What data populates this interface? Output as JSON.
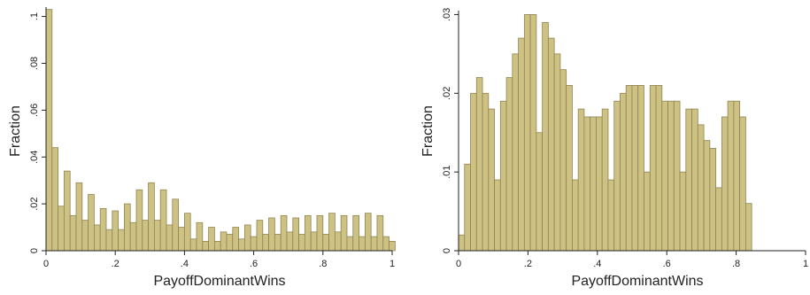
{
  "colors": {
    "bar_fill": "#cdc183",
    "bar_edge": "#8f8553",
    "axis": "#222222",
    "plot_bg": "#ffffff"
  },
  "chart_data": [
    {
      "type": "bar",
      "title": "",
      "xlabel": "PayoffDominantWins",
      "ylabel": "Fraction",
      "xlim": [
        0,
        1
      ],
      "ylim": [
        0,
        0.104
      ],
      "grid": false,
      "legend": "none",
      "x_ticks": [
        0,
        0.2,
        0.4,
        0.6,
        0.8,
        1
      ],
      "x_tick_labels": [
        "0",
        ".2",
        ".4",
        ".6",
        ".8",
        "1"
      ],
      "y_ticks": [
        0,
        0.02,
        0.04,
        0.06,
        0.08,
        0.1
      ],
      "y_tick_labels": [
        "0",
        ".02",
        ".04",
        ".06",
        ".08",
        ".1"
      ],
      "bin_width": 0.01739,
      "values": [
        0.103,
        0.044,
        0.019,
        0.034,
        0.015,
        0.029,
        0.013,
        0.024,
        0.011,
        0.018,
        0.009,
        0.017,
        0.009,
        0.02,
        0.012,
        0.026,
        0.013,
        0.029,
        0.013,
        0.026,
        0.011,
        0.022,
        0.01,
        0.016,
        0.005,
        0.012,
        0.004,
        0.01,
        0.004,
        0.008,
        0.007,
        0.01,
        0.005,
        0.011,
        0.006,
        0.013,
        0.007,
        0.014,
        0.007,
        0.015,
        0.008,
        0.014,
        0.007,
        0.015,
        0.008,
        0.015,
        0.007,
        0.016,
        0.008,
        0.015,
        0.006,
        0.015,
        0.006,
        0.016,
        0.006,
        0.015,
        0.006,
        0.004
      ]
    },
    {
      "type": "bar",
      "title": "",
      "xlabel": "PayoffDominantWins",
      "ylabel": "Fraction",
      "xlim": [
        0,
        1
      ],
      "ylim": [
        0,
        0.0305
      ],
      "grid": false,
      "legend": "none",
      "x_ticks": [
        0,
        0.2,
        0.4,
        0.6,
        0.8,
        1
      ],
      "x_tick_labels": [
        "0",
        ".2",
        ".4",
        ".6",
        ".8",
        "1"
      ],
      "y_ticks": [
        0,
        0.01,
        0.02,
        0.03
      ],
      "y_tick_labels": [
        "0",
        ".01",
        ".02",
        ".03"
      ],
      "bin_width": 0.01724,
      "values": [
        0.002,
        0.011,
        0.02,
        0.022,
        0.02,
        0.018,
        0.009,
        0.019,
        0.022,
        0.025,
        0.027,
        0.03,
        0.03,
        0.015,
        0.029,
        0.027,
        0.025,
        0.023,
        0.021,
        0.009,
        0.018,
        0.017,
        0.017,
        0.017,
        0.018,
        0.009,
        0.019,
        0.02,
        0.021,
        0.021,
        0.021,
        0.01,
        0.021,
        0.021,
        0.019,
        0.019,
        0.019,
        0.01,
        0.018,
        0.018,
        0.016,
        0.014,
        0.013,
        0.008,
        0.017,
        0.019,
        0.019,
        0.017,
        0.006
      ]
    }
  ]
}
